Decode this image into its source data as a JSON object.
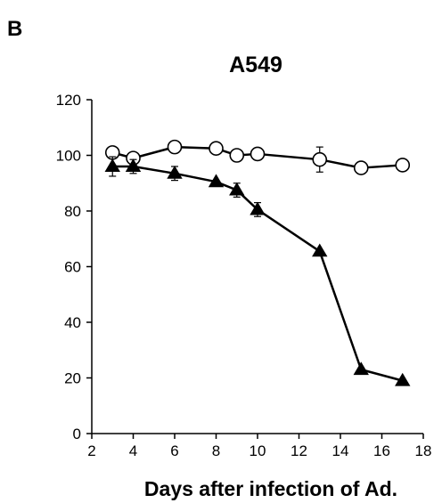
{
  "panel_label": "B",
  "chart_data": {
    "type": "line",
    "title": "A549",
    "xlabel": "Days after infection of Ad.",
    "ylabel": "",
    "xlim": [
      2,
      18
    ],
    "ylim": [
      0,
      120
    ],
    "xticks": [
      2,
      4,
      6,
      8,
      10,
      12,
      14,
      16,
      18
    ],
    "yticks": [
      0,
      20,
      40,
      60,
      80,
      100,
      120
    ],
    "grid": false,
    "legend": "none",
    "series": [
      {
        "marker": "open-circle",
        "color": "#000000",
        "x": [
          3,
          4,
          6,
          8,
          9,
          10,
          13,
          15,
          17
        ],
        "y": [
          101,
          99,
          103,
          102.5,
          100,
          100.5,
          98.5,
          95.5,
          96.5
        ],
        "error": [
          0,
          0,
          0,
          0,
          0,
          0,
          4.5,
          0,
          0
        ]
      },
      {
        "marker": "filled-triangle",
        "color": "#000000",
        "x": [
          3,
          4,
          6,
          8,
          9,
          10,
          13,
          15,
          17
        ],
        "y": [
          96,
          96,
          93.5,
          90.5,
          87.5,
          80.5,
          65.5,
          23,
          19
        ],
        "error": [
          3.5,
          2.5,
          2.5,
          0,
          2.5,
          2.5,
          0,
          0,
          0
        ]
      }
    ]
  }
}
